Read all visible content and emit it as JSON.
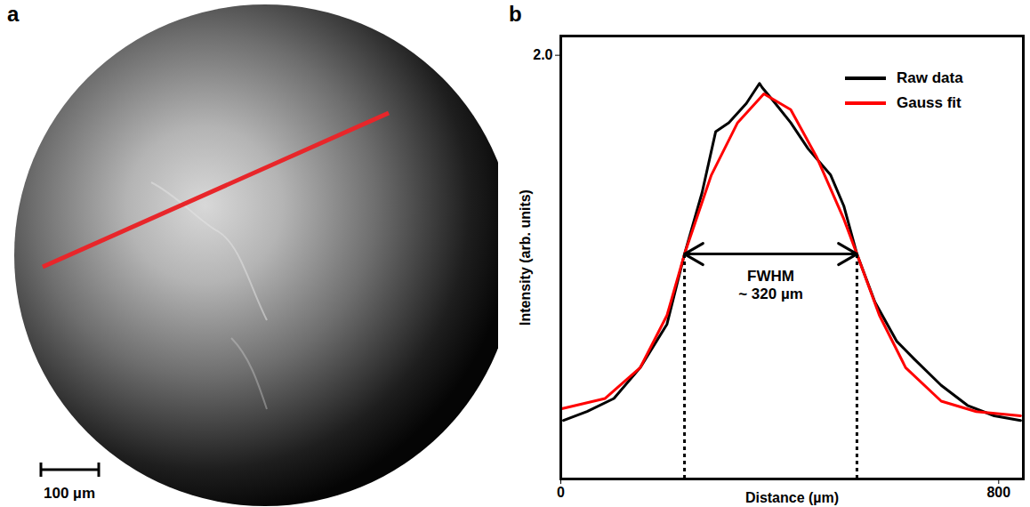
{
  "image_panel": {
    "panel_label": "a",
    "scale_bar": "100 µm"
  },
  "chart_data": {
    "type": "line",
    "panel_label": "b",
    "xlabel": "Distance (µm)",
    "ylabel": "Intensity (arb. units)",
    "xlim": [
      0,
      845
    ],
    "ylim": [
      0.9,
      2.05
    ],
    "xticks": [
      0,
      800
    ],
    "yticks": [
      2
    ],
    "legend": "top-right",
    "series": [
      {
        "name": "Raw data",
        "color": "#000000",
        "x": [
          5,
          48,
          97,
          145,
          194,
          226,
          258,
          283,
          307,
          339,
          363,
          368,
          388,
          420,
          452,
          493,
          517,
          541,
          574,
          614,
          646,
          695,
          743,
          792,
          840
        ],
        "values": [
          1.052,
          1.075,
          1.109,
          1.189,
          1.302,
          1.484,
          1.643,
          1.802,
          1.825,
          1.875,
          1.927,
          1.916,
          1.882,
          1.825,
          1.757,
          1.689,
          1.609,
          1.484,
          1.359,
          1.257,
          1.211,
          1.143,
          1.091,
          1.064,
          1.052
        ]
      },
      {
        "name": "Gauss fit",
        "color": "#ff0000",
        "x": [
          0,
          81,
          145,
          194,
          226,
          275,
          323,
          371,
          420,
          468,
          517,
          541,
          582,
          630,
          695,
          759,
          840
        ],
        "values": [
          1.082,
          1.109,
          1.189,
          1.325,
          1.484,
          1.689,
          1.825,
          1.9,
          1.859,
          1.734,
          1.575,
          1.484,
          1.325,
          1.189,
          1.102,
          1.075,
          1.064
        ]
      }
    ],
    "annotation": {
      "text": [
        "FWHM",
        "~ 320 µm"
      ],
      "x1": 226,
      "x2": 541,
      "y": 1.484
    }
  }
}
